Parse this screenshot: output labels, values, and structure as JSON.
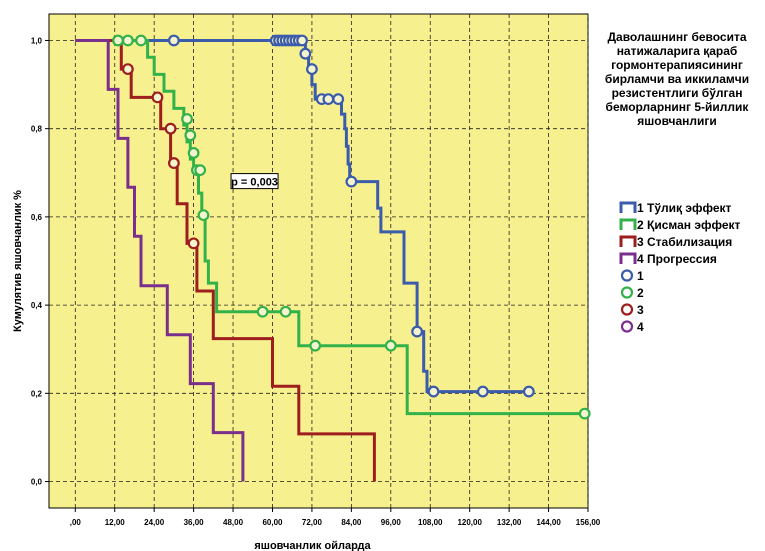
{
  "chart_data": {
    "type": "line",
    "subtype": "kaplan-meier",
    "title": "Даволашнинг бевосита натижаларига қараб гормонтерапиясининг бирламчи ва иккиламчи резистентлиги бўлган беморларнинг 5-йиллик яшовчанлиги",
    "title_lines": [
      "Даволашнинг бевосита",
      "натижаларига қараб",
      "гормонтерапиясининг",
      "бирламчи ва иккиламчи",
      "резистентлиги бўлган",
      "беморларнинг 5-йиллик",
      "яшовчанлиги"
    ],
    "xlabel": "яшовчанлик ойларда",
    "ylabel": "Кумулятив яшовчанлик %",
    "xlim": [
      -8,
      156
    ],
    "ylim": [
      -0.06,
      1.06
    ],
    "x_ticks": [
      0,
      12,
      24,
      36,
      48,
      60,
      72,
      84,
      96,
      108,
      120,
      132,
      144,
      156
    ],
    "x_tick_labels": [
      ",00",
      "12,00",
      "24,00",
      "36,00",
      "48,00",
      "60,00",
      "72,00",
      "84,00",
      "96,00",
      "108,00",
      "120,00",
      "132,00",
      "144,00",
      "156,00"
    ],
    "y_ticks": [
      0,
      0.2,
      0.4,
      0.6,
      0.8,
      1.0
    ],
    "y_tick_labels": [
      "0,0",
      "0,2",
      "0,4",
      "0,6",
      "0,8",
      "1,0"
    ],
    "grid": true,
    "background_color": "#f7f08f",
    "annotation": "p = 0,003",
    "legend_placement": "right",
    "series": [
      {
        "name": "1 Тўлиқ эффект",
        "censor_label": "1",
        "color": "#3b5bab",
        "steps": [
          [
            0,
            1.0
          ],
          [
            70,
            0.97
          ],
          [
            71,
            0.935
          ],
          [
            72,
            0.9
          ],
          [
            73,
            0.867
          ],
          [
            81,
            0.833
          ],
          [
            82,
            0.8
          ],
          [
            82.5,
            0.76
          ],
          [
            83,
            0.72
          ],
          [
            83.5,
            0.68
          ],
          [
            92,
            0.62
          ],
          [
            93,
            0.566
          ],
          [
            100,
            0.45
          ],
          [
            104,
            0.34
          ],
          [
            106,
            0.25
          ],
          [
            107,
            0.204
          ],
          [
            138,
            0.204
          ]
        ],
        "censored": [
          [
            30,
            1.0
          ],
          [
            61,
            1.0
          ],
          [
            62,
            1.0
          ],
          [
            63,
            1.0
          ],
          [
            64,
            1.0
          ],
          [
            65,
            1.0
          ],
          [
            66,
            1.0
          ],
          [
            67,
            1.0
          ],
          [
            68,
            1.0
          ],
          [
            69,
            1.0
          ],
          [
            70,
            0.97
          ],
          [
            72,
            0.935
          ],
          [
            75,
            0.867
          ],
          [
            77,
            0.867
          ],
          [
            80,
            0.867
          ],
          [
            84,
            0.68
          ],
          [
            104,
            0.34
          ],
          [
            109,
            0.204
          ],
          [
            124,
            0.204
          ],
          [
            138,
            0.204
          ]
        ]
      },
      {
        "name": "2 Қисман эффект",
        "censor_label": "2",
        "color": "#33b24a",
        "steps": [
          [
            0,
            1.0
          ],
          [
            22,
            0.962
          ],
          [
            24,
            0.923
          ],
          [
            27,
            0.885
          ],
          [
            30,
            0.846
          ],
          [
            33,
            0.808
          ],
          [
            34,
            0.77
          ],
          [
            35,
            0.731
          ],
          [
            36,
            0.706
          ],
          [
            37.5,
            0.654
          ],
          [
            38.5,
            0.604
          ],
          [
            39.5,
            0.5
          ],
          [
            40.5,
            0.45
          ],
          [
            43,
            0.385
          ],
          [
            68,
            0.308
          ],
          [
            101,
            0.154
          ],
          [
            155,
            0.154
          ]
        ],
        "censored": [
          [
            13,
            1.0
          ],
          [
            16,
            1.0
          ],
          [
            20,
            1.0
          ],
          [
            34,
            0.822
          ],
          [
            35,
            0.785
          ],
          [
            36,
            0.745
          ],
          [
            37,
            0.706
          ],
          [
            38,
            0.706
          ],
          [
            39,
            0.604
          ],
          [
            57,
            0.385
          ],
          [
            64,
            0.385
          ],
          [
            73,
            0.308
          ],
          [
            96,
            0.308
          ],
          [
            155,
            0.154
          ]
        ]
      },
      {
        "name": "3 Стабилизация",
        "censor_label": "3",
        "color": "#9e1e1e",
        "steps": [
          [
            0,
            1.0
          ],
          [
            14,
            0.935
          ],
          [
            17,
            0.871
          ],
          [
            26,
            0.8
          ],
          [
            29,
            0.722
          ],
          [
            31,
            0.63
          ],
          [
            34,
            0.54
          ],
          [
            37,
            0.432
          ],
          [
            42,
            0.324
          ],
          [
            60,
            0.216
          ],
          [
            68,
            0.108
          ],
          [
            91,
            0.0
          ]
        ],
        "censored": [
          [
            16,
            0.935
          ],
          [
            25,
            0.871
          ],
          [
            29,
            0.8
          ],
          [
            30,
            0.722
          ],
          [
            36,
            0.54
          ]
        ]
      },
      {
        "name": "4 Прогрессия",
        "censor_label": "4",
        "color": "#7b2f8c",
        "steps": [
          [
            0,
            1.0
          ],
          [
            10,
            0.889
          ],
          [
            13,
            0.778
          ],
          [
            16,
            0.667
          ],
          [
            18,
            0.556
          ],
          [
            20,
            0.444
          ],
          [
            28,
            0.333
          ],
          [
            35,
            0.222
          ],
          [
            42,
            0.111
          ],
          [
            51,
            0.0
          ]
        ],
        "censored": []
      }
    ]
  }
}
